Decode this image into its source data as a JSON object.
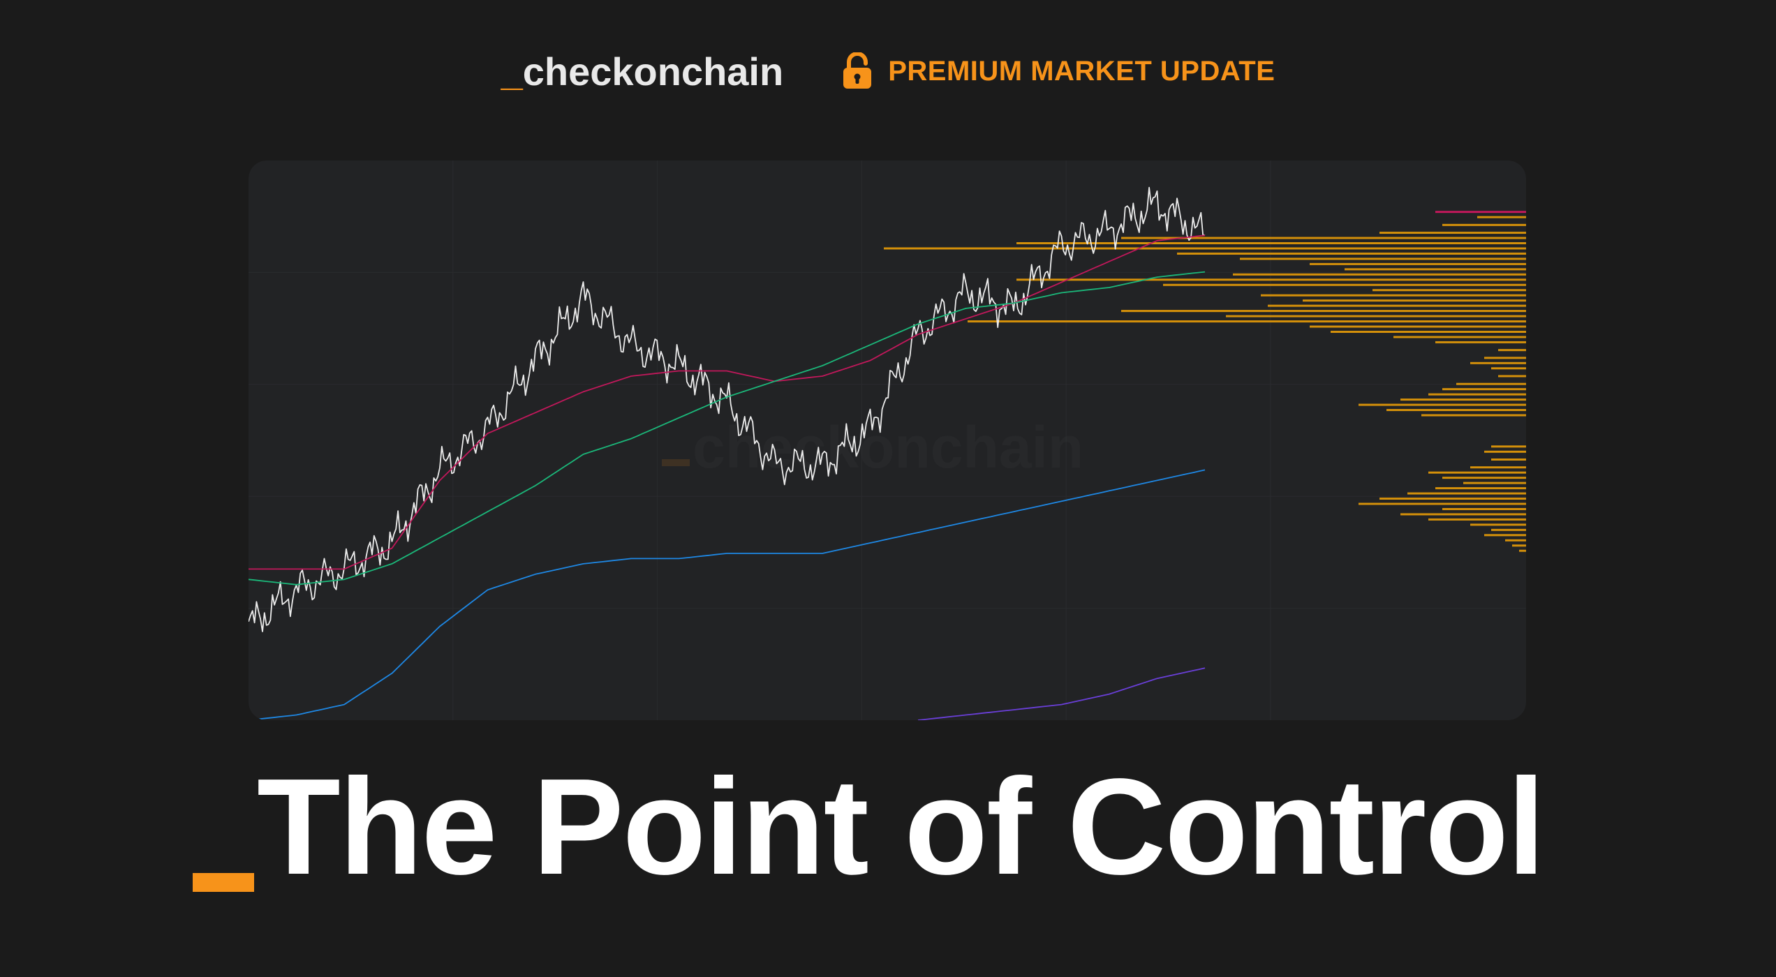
{
  "header": {
    "brand_underscore": "_",
    "brand_name": "checkonchain",
    "premium_label": "PREMIUM MARKET UPDATE",
    "lock_icon": "unlocked-padlock-icon"
  },
  "colors": {
    "background": "#1b1b1b",
    "card": "#222325",
    "accent": "#f7931a",
    "price": "#ececec",
    "red_band": "#c2185b",
    "green_band": "#1bb87a",
    "blue_band": "#1e88e5",
    "purple_band": "#6a3fd9",
    "volume_profile": "#d4900a"
  },
  "watermark": {
    "underscore": "_",
    "text": "checkonchain"
  },
  "chart_data": {
    "type": "line",
    "title": "",
    "xlabel": "",
    "ylabel": "",
    "ylim": [
      0,
      100
    ],
    "grid": true,
    "legend": "none",
    "x": [
      0,
      5,
      10,
      15,
      20,
      25,
      30,
      35,
      40,
      45,
      50,
      55,
      60,
      65,
      70,
      75,
      80,
      85,
      90,
      95,
      100
    ],
    "series": [
      {
        "role": "price",
        "values": [
          18,
          25,
          29,
          34,
          48,
          56,
          69,
          81,
          72,
          68,
          61,
          49,
          49,
          56,
          74,
          82,
          79,
          91,
          94,
          99,
          93
        ],
        "color_key": "price"
      },
      {
        "role": "band",
        "values": [
          29,
          29,
          29,
          33,
          46,
          55,
          59,
          63,
          66,
          67,
          67,
          65,
          66,
          69,
          74,
          77,
          80,
          84,
          88,
          92,
          93
        ],
        "color_key": "red_band"
      },
      {
        "role": "band",
        "values": [
          27,
          26,
          27,
          30,
          35,
          40,
          45,
          51,
          54,
          58,
          62,
          65,
          68,
          72,
          76,
          79,
          80,
          82,
          83,
          85,
          86
        ],
        "color_key": "green_band"
      },
      {
        "role": "band",
        "values": [
          0,
          1,
          3,
          9,
          18,
          25,
          28,
          30,
          31,
          31,
          32,
          32,
          32,
          34,
          36,
          38,
          40,
          42,
          44,
          46,
          48
        ],
        "color_key": "blue_band"
      },
      {
        "role": "band",
        "values": [
          null,
          null,
          null,
          null,
          null,
          null,
          null,
          null,
          null,
          null,
          null,
          null,
          null,
          null,
          0,
          1,
          2,
          3,
          5,
          8,
          10
        ],
        "color_key": "purple_band"
      }
    ],
    "volume_profile": [
      {
        "y": 96.5,
        "v": 7
      },
      {
        "y": 95.0,
        "v": 12
      },
      {
        "y": 93.5,
        "v": 21
      },
      {
        "y": 92.5,
        "v": 58
      },
      {
        "y": 91.5,
        "v": 73
      },
      {
        "y": 90.5,
        "v": 92
      },
      {
        "y": 89.5,
        "v": 50
      },
      {
        "y": 88.5,
        "v": 41
      },
      {
        "y": 87.5,
        "v": 31
      },
      {
        "y": 86.5,
        "v": 26
      },
      {
        "y": 85.5,
        "v": 42
      },
      {
        "y": 84.5,
        "v": 73
      },
      {
        "y": 83.5,
        "v": 52
      },
      {
        "y": 82.5,
        "v": 22
      },
      {
        "y": 81.5,
        "v": 38
      },
      {
        "y": 80.5,
        "v": 32
      },
      {
        "y": 79.5,
        "v": 37
      },
      {
        "y": 78.5,
        "v": 58
      },
      {
        "y": 77.5,
        "v": 43
      },
      {
        "y": 76.5,
        "v": 80
      },
      {
        "y": 75.5,
        "v": 31
      },
      {
        "y": 74.5,
        "v": 28
      },
      {
        "y": 73.5,
        "v": 19
      },
      {
        "y": 72.5,
        "v": 13
      },
      {
        "y": 71.0,
        "v": 4
      },
      {
        "y": 69.5,
        "v": 6
      },
      {
        "y": 68.5,
        "v": 8
      },
      {
        "y": 67.5,
        "v": 5
      },
      {
        "y": 66.0,
        "v": 4
      },
      {
        "y": 64.5,
        "v": 10
      },
      {
        "y": 63.5,
        "v": 12
      },
      {
        "y": 62.5,
        "v": 14
      },
      {
        "y": 61.5,
        "v": 18
      },
      {
        "y": 60.5,
        "v": 24
      },
      {
        "y": 59.5,
        "v": 20
      },
      {
        "y": 58.5,
        "v": 15
      },
      {
        "y": 52.5,
        "v": 5
      },
      {
        "y": 51.5,
        "v": 6
      },
      {
        "y": 50.0,
        "v": 5
      },
      {
        "y": 48.5,
        "v": 8
      },
      {
        "y": 47.5,
        "v": 14
      },
      {
        "y": 46.5,
        "v": 12
      },
      {
        "y": 45.5,
        "v": 9
      },
      {
        "y": 44.5,
        "v": 13
      },
      {
        "y": 43.5,
        "v": 17
      },
      {
        "y": 42.5,
        "v": 21
      },
      {
        "y": 41.5,
        "v": 24
      },
      {
        "y": 40.5,
        "v": 12
      },
      {
        "y": 39.5,
        "v": 18
      },
      {
        "y": 38.5,
        "v": 14
      },
      {
        "y": 37.5,
        "v": 8
      },
      {
        "y": 36.5,
        "v": 5
      },
      {
        "y": 35.5,
        "v": 6
      },
      {
        "y": 34.5,
        "v": 3
      },
      {
        "y": 33.5,
        "v": 2
      },
      {
        "y": 32.5,
        "v": 1
      }
    ],
    "volume_profile_top_marker": {
      "y": 97.5,
      "v": 13
    }
  },
  "title": {
    "underscore": "_",
    "text": "The Point of Control"
  }
}
